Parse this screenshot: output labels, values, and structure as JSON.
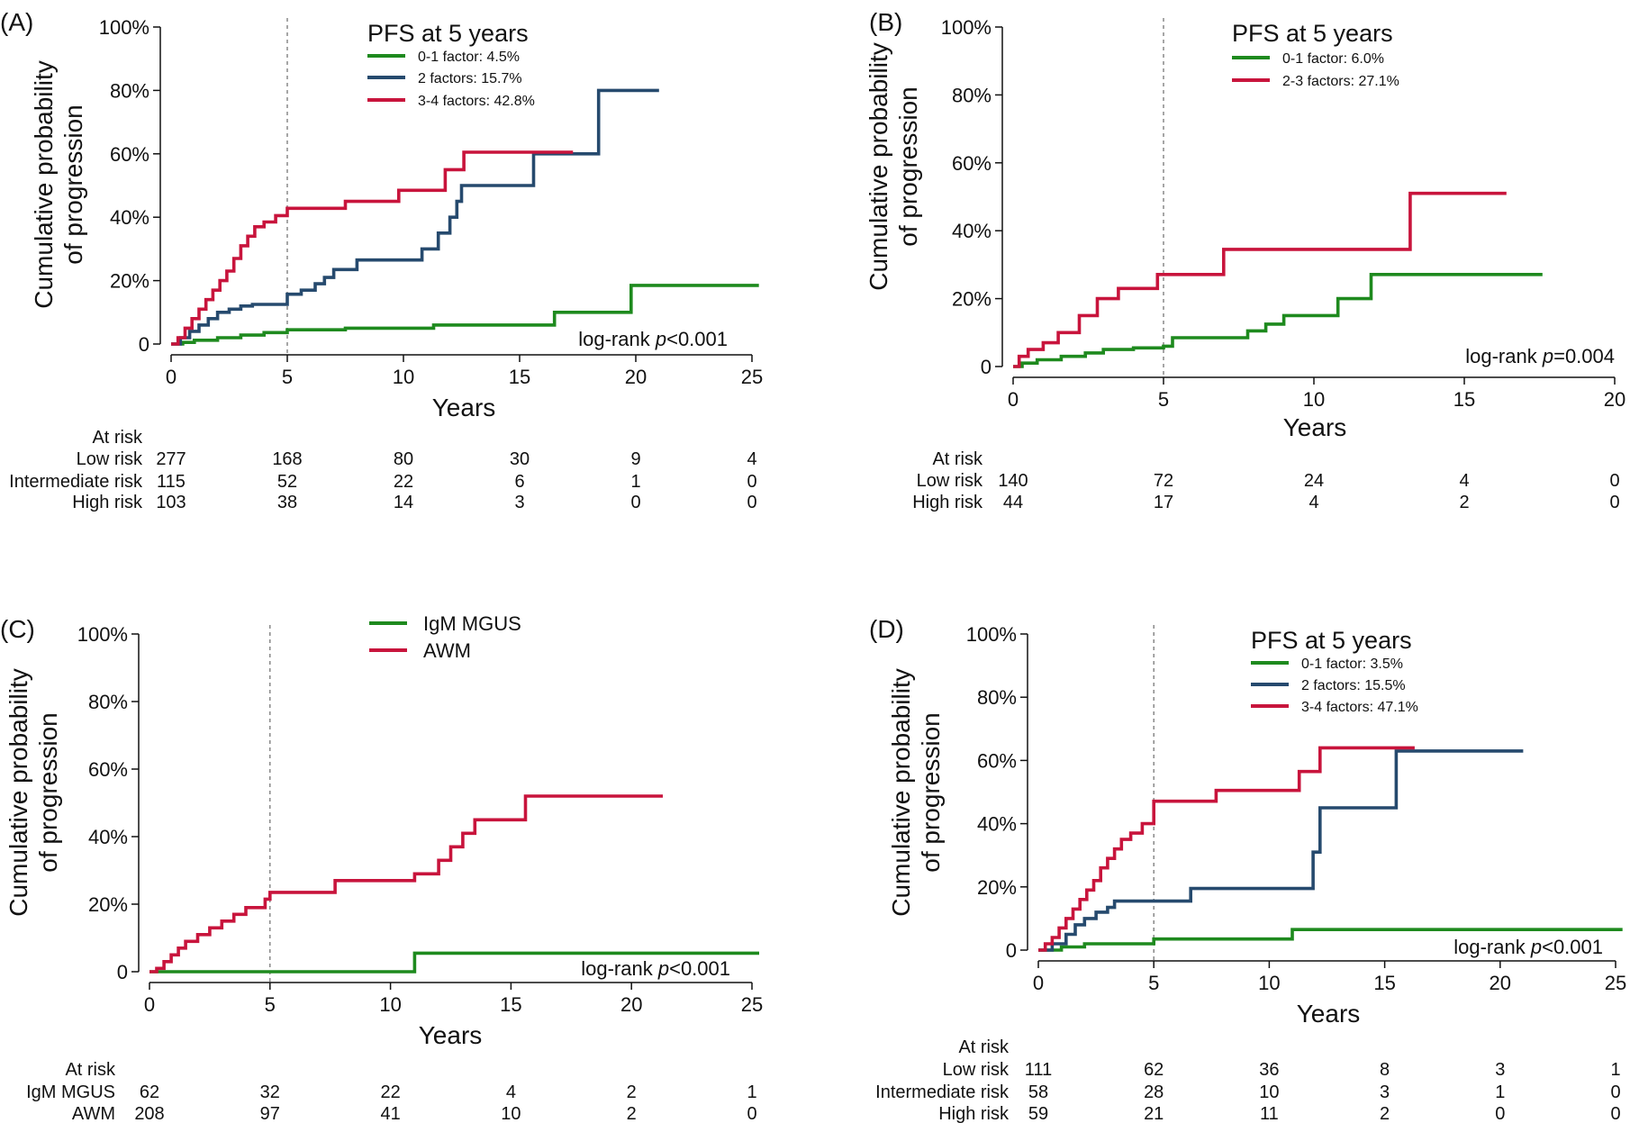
{
  "chart_data": [
    {
      "panel": "(A)",
      "type": "line",
      "step": true,
      "xlabel": "Years",
      "ylabel": [
        "Cumulative probability",
        "of progression"
      ],
      "xlim": [
        0,
        25
      ],
      "xticks": [
        0,
        5,
        10,
        15,
        20,
        25
      ],
      "ylim": [
        0,
        100
      ],
      "yticks": [
        "0",
        "20%",
        "40%",
        "60%",
        "80%",
        "100%"
      ],
      "reference_line_x": 5,
      "legend_title": "PFS at 5 years",
      "legend_size": "small",
      "annotation": "log-rank p<0.001",
      "series": [
        {
          "name": "0-1 factor: 4.5%",
          "color": "#1e8a1e",
          "points": [
            [
              0,
              0
            ],
            [
              0.5,
              0.5
            ],
            [
              1,
              1.2
            ],
            [
              2,
              2
            ],
            [
              3,
              2.8
            ],
            [
              4,
              3.6
            ],
            [
              5,
              4.5
            ],
            [
              7.5,
              5
            ],
            [
              11.3,
              6
            ],
            [
              16.5,
              10
            ],
            [
              19.8,
              18.5
            ],
            [
              26,
              18.5
            ]
          ]
        },
        {
          "name": "2 factors: 15.7%",
          "color": "#264a6e",
          "points": [
            [
              0,
              0
            ],
            [
              0.4,
              2
            ],
            [
              0.8,
              4
            ],
            [
              1.2,
              6
            ],
            [
              1.6,
              8
            ],
            [
              2,
              10
            ],
            [
              2.5,
              11
            ],
            [
              3,
              12
            ],
            [
              3.5,
              12.5
            ],
            [
              4.5,
              12.5
            ],
            [
              5,
              15.7
            ],
            [
              5.6,
              17
            ],
            [
              6.2,
              19
            ],
            [
              6.6,
              21
            ],
            [
              7,
              23.5
            ],
            [
              8,
              26.5
            ],
            [
              10.8,
              30
            ],
            [
              11.5,
              35
            ],
            [
              12,
              40
            ],
            [
              12.3,
              45
            ],
            [
              12.5,
              50
            ],
            [
              15.6,
              60
            ],
            [
              18.4,
              80
            ],
            [
              21,
              80
            ]
          ]
        },
        {
          "name": "3-4 factors: 42.8%",
          "color": "#c8143c",
          "points": [
            [
              0,
              0
            ],
            [
              0.3,
              2
            ],
            [
              0.6,
              5
            ],
            [
              0.9,
              8
            ],
            [
              1.2,
              11
            ],
            [
              1.5,
              14
            ],
            [
              1.8,
              17
            ],
            [
              2.1,
              20
            ],
            [
              2.4,
              23
            ],
            [
              2.7,
              27
            ],
            [
              3,
              31
            ],
            [
              3.3,
              34
            ],
            [
              3.6,
              37
            ],
            [
              4,
              38.5
            ],
            [
              4.5,
              40.5
            ],
            [
              5,
              42.8
            ],
            [
              7.5,
              45
            ],
            [
              9.8,
              48.5
            ],
            [
              11.8,
              55
            ],
            [
              12.6,
              60.5
            ],
            [
              17.3,
              60.5
            ]
          ]
        }
      ],
      "at_risk": {
        "label": "At risk",
        "x": [
          0,
          5,
          10,
          15,
          20,
          25
        ],
        "rows": [
          {
            "name": "Low risk",
            "values": [
              "277",
              "168",
              "80",
              "30",
              "9",
              "4"
            ]
          },
          {
            "name": "Intermediate risk",
            "values": [
              "115",
              "52",
              "22",
              "6",
              "1",
              "0"
            ]
          },
          {
            "name": "High risk",
            "values": [
              "103",
              "38",
              "14",
              "3",
              "0",
              "0"
            ]
          }
        ]
      }
    },
    {
      "panel": "(B)",
      "type": "line",
      "step": true,
      "xlabel": "Years",
      "ylabel": [
        "Cumulative probability",
        "of progression"
      ],
      "xlim": [
        0,
        20
      ],
      "xticks": [
        0,
        5,
        10,
        15,
        20
      ],
      "ylim": [
        0,
        100
      ],
      "yticks": [
        "0",
        "20%",
        "40%",
        "60%",
        "80%",
        "100%"
      ],
      "reference_line_x": 5,
      "legend_title": "PFS at 5 years",
      "legend_size": "small",
      "annotation": "log-rank p=0.004",
      "series": [
        {
          "name": "0-1 factor: 6.0%",
          "color": "#1e8a1e",
          "points": [
            [
              0,
              0
            ],
            [
              0.3,
              1
            ],
            [
              0.8,
              2
            ],
            [
              1.6,
              3
            ],
            [
              2.4,
              4
            ],
            [
              3,
              5
            ],
            [
              4,
              5.5
            ],
            [
              5,
              6
            ],
            [
              5.3,
              8.5
            ],
            [
              7.8,
              10.5
            ],
            [
              8.4,
              12.5
            ],
            [
              9,
              15
            ],
            [
              10.8,
              20
            ],
            [
              11.9,
              27.1
            ],
            [
              17.6,
              27.1
            ]
          ]
        },
        {
          "name": "2-3 factors: 27.1%",
          "color": "#c8143c",
          "points": [
            [
              0,
              0
            ],
            [
              0.2,
              3
            ],
            [
              0.5,
              5
            ],
            [
              1,
              7
            ],
            [
              1.5,
              10
            ],
            [
              2.2,
              15
            ],
            [
              2.8,
              20
            ],
            [
              3.5,
              23
            ],
            [
              4.8,
              27.1
            ],
            [
              7,
              34.5
            ],
            [
              13.2,
              51
            ],
            [
              16.4,
              51
            ]
          ]
        }
      ],
      "at_risk": {
        "label": "At risk",
        "x": [
          0,
          5,
          10,
          15,
          20
        ],
        "rows": [
          {
            "name": "Low risk",
            "values": [
              "140",
              "72",
              "24",
              "4",
              "0"
            ]
          },
          {
            "name": "High risk",
            "values": [
              "44",
              "17",
              "4",
              "2",
              "0"
            ]
          }
        ]
      }
    },
    {
      "panel": "(C)",
      "type": "line",
      "step": true,
      "xlabel": "Years",
      "ylabel": [
        "Cumulative probability",
        "of progression"
      ],
      "xlim": [
        0,
        25
      ],
      "xticks": [
        0,
        5,
        10,
        15,
        20,
        25
      ],
      "ylim": [
        0,
        100
      ],
      "yticks": [
        "0",
        "20%",
        "40%",
        "60%",
        "80%",
        "100%"
      ],
      "reference_line_x": 5,
      "legend_title": "",
      "legend_size": "big",
      "annotation": "log-rank p<0.001",
      "series": [
        {
          "name": "IgM MGUS",
          "color": "#1e8a1e",
          "points": [
            [
              0,
              0
            ],
            [
              11,
              0
            ],
            [
              11,
              5.5
            ],
            [
              26,
              5.5
            ]
          ]
        },
        {
          "name": "AWM",
          "color": "#c8143c",
          "points": [
            [
              0,
              0
            ],
            [
              0.3,
              1
            ],
            [
              0.6,
              3
            ],
            [
              0.9,
              5
            ],
            [
              1.2,
              7
            ],
            [
              1.5,
              9
            ],
            [
              2,
              11
            ],
            [
              2.5,
              13
            ],
            [
              3,
              15
            ],
            [
              3.5,
              17
            ],
            [
              4,
              19
            ],
            [
              4.8,
              21.5
            ],
            [
              5,
              23.5
            ],
            [
              7.7,
              27
            ],
            [
              11,
              29
            ],
            [
              12,
              33
            ],
            [
              12.5,
              37
            ],
            [
              13,
              41
            ],
            [
              13.5,
              45
            ],
            [
              15.6,
              52
            ],
            [
              21.3,
              52
            ]
          ]
        }
      ],
      "at_risk": {
        "label": "At risk",
        "x": [
          0,
          5,
          10,
          15,
          20,
          25
        ],
        "rows": [
          {
            "name": "IgM MGUS",
            "values": [
              "62",
              "32",
              "22",
              "4",
              "2",
              "1"
            ]
          },
          {
            "name": "AWM",
            "values": [
              "208",
              "97",
              "41",
              "10",
              "2",
              "0"
            ]
          }
        ]
      }
    },
    {
      "panel": "(D)",
      "type": "line",
      "step": true,
      "xlabel": "Years",
      "ylabel": [
        "Cumulative probability",
        "of progression"
      ],
      "xlim": [
        0,
        25
      ],
      "xticks": [
        0,
        5,
        10,
        15,
        20,
        25
      ],
      "ylim": [
        0,
        100
      ],
      "yticks": [
        "0",
        "20%",
        "40%",
        "60%",
        "80%",
        "100%"
      ],
      "reference_line_x": 5,
      "legend_title": "PFS at 5 years",
      "legend_size": "small",
      "annotation": "log-rank p<0.001",
      "series": [
        {
          "name": "0-1 factor: 3.5%",
          "color": "#1e8a1e",
          "points": [
            [
              0,
              0
            ],
            [
              1,
              1
            ],
            [
              2,
              2
            ],
            [
              5,
              3.5
            ],
            [
              11,
              6.5
            ],
            [
              26,
              6.5
            ]
          ]
        },
        {
          "name": "2 factors: 15.5%",
          "color": "#264a6e",
          "points": [
            [
              0,
              0
            ],
            [
              0.6,
              2
            ],
            [
              1.2,
              5
            ],
            [
              1.6,
              8
            ],
            [
              2,
              10
            ],
            [
              2.5,
              12
            ],
            [
              3,
              13.5
            ],
            [
              3.3,
              15.5
            ],
            [
              6.6,
              19.5
            ],
            [
              11.9,
              31
            ],
            [
              12.2,
              45
            ],
            [
              15.5,
              63
            ],
            [
              21,
              63
            ]
          ]
        },
        {
          "name": "3-4 factors: 47.1%",
          "color": "#c8143c",
          "points": [
            [
              0,
              0
            ],
            [
              0.3,
              2
            ],
            [
              0.6,
              4
            ],
            [
              0.9,
              7
            ],
            [
              1.2,
              10
            ],
            [
              1.5,
              13
            ],
            [
              1.8,
              16
            ],
            [
              2.1,
              19
            ],
            [
              2.4,
              22
            ],
            [
              2.7,
              26
            ],
            [
              3,
              29
            ],
            [
              3.3,
              32
            ],
            [
              3.6,
              35
            ],
            [
              4,
              37
            ],
            [
              4.5,
              40
            ],
            [
              5,
              47.1
            ],
            [
              7.7,
              50.5
            ],
            [
              11.3,
              56.5
            ],
            [
              12.2,
              64
            ],
            [
              16.3,
              64
            ]
          ]
        }
      ],
      "at_risk": {
        "label": "At risk",
        "x": [
          0,
          5,
          10,
          15,
          20,
          25
        ],
        "rows": [
          {
            "name": "Low risk",
            "values": [
              "111",
              "62",
              "36",
              "8",
              "3",
              "1"
            ]
          },
          {
            "name": "Intermediate risk",
            "values": [
              "58",
              "28",
              "10",
              "3",
              "1",
              "0"
            ]
          },
          {
            "name": "High risk",
            "values": [
              "59",
              "21",
              "11",
              "2",
              "0",
              "0"
            ]
          }
        ]
      }
    }
  ]
}
